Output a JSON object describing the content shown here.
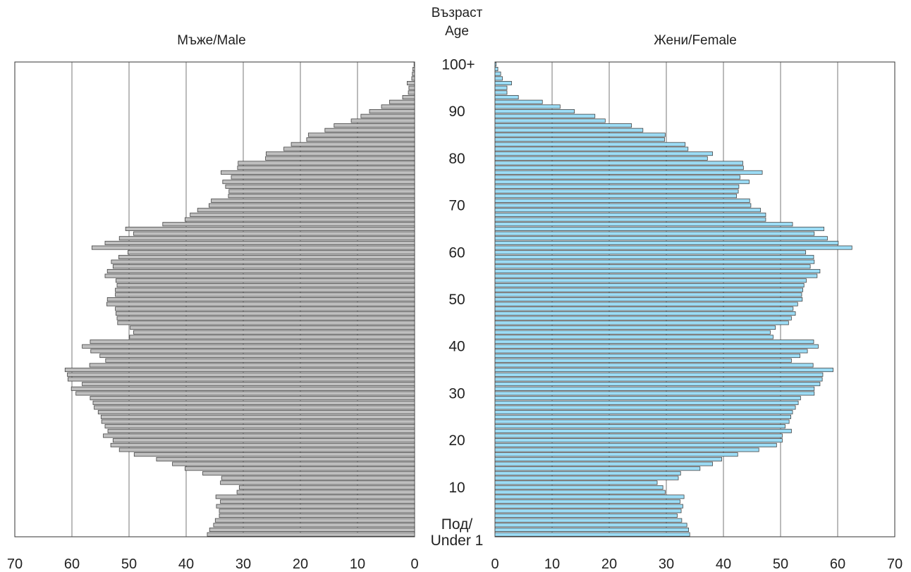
{
  "chart_data": {
    "type": "bar",
    "orientation": "horizontal",
    "title_center_top": "Възраст",
    "title_center_bottom": "Age",
    "male_title": "Мъже/Male",
    "female_title": "Жени/Female",
    "age_labels": [
      "100+",
      "90",
      "80",
      "70",
      "60",
      "50",
      "40",
      "30",
      "20",
      "10",
      "Под/",
      "Under 1"
    ],
    "xlim": [
      0,
      70
    ],
    "x_ticks": [
      "0",
      "10",
      "20",
      "30",
      "40",
      "50",
      "60",
      "70"
    ],
    "grid": true,
    "colors": {
      "male": "#bfbfbf",
      "female": "#9cdcf5"
    },
    "ages_order": "0 (Under 1) to 100+",
    "series": [
      {
        "name": "Мъже/Male",
        "values": [
          36.3,
          35.9,
          35.2,
          34.9,
          34.2,
          34.2,
          34.7,
          34.0,
          34.8,
          31.1,
          30.7,
          34.0,
          33.8,
          37.1,
          40.2,
          42.4,
          45.2,
          49.1,
          51.7,
          53.2,
          52.8,
          54.5,
          53.7,
          54.2,
          54.8,
          54.9,
          55.4,
          56.1,
          56.3,
          56.8,
          59.3,
          60.1,
          58.2,
          60.7,
          60.8,
          61.2,
          56.9,
          54.1,
          55.1,
          56.7,
          58.2,
          56.8,
          49.9,
          49.2,
          49.8,
          52.0,
          52.1,
          52.3,
          52.4,
          53.9,
          53.8,
          52.4,
          52.4,
          52.1,
          52.3,
          54.2,
          53.8,
          52.8,
          53.1,
          51.8,
          50.2,
          56.5,
          54.2,
          51.7,
          49.2,
          50.6,
          44.1,
          40.2,
          39.3,
          38.0,
          36.0,
          35.6,
          32.6,
          32.5,
          33.1,
          33.6,
          32.1,
          33.9,
          31.0,
          30.9,
          26.1,
          26.0,
          22.9,
          21.6,
          18.9,
          18.6,
          15.7,
          14.1,
          11.1,
          9.4,
          7.9,
          5.8,
          4.4,
          2.1,
          1.1,
          1.0,
          1.3,
          0.5,
          0.4,
          0.3,
          0.1
        ]
      },
      {
        "name": "Жени/Female",
        "values": [
          34.1,
          33.9,
          33.6,
          32.7,
          31.9,
          32.6,
          32.9,
          32.4,
          33.1,
          29.8,
          29.4,
          28.4,
          32.1,
          32.5,
          35.9,
          38.1,
          39.7,
          42.5,
          46.2,
          49.3,
          50.3,
          50.3,
          51.9,
          50.8,
          51.5,
          51.8,
          52.1,
          52.6,
          53.1,
          53.5,
          55.9,
          55.9,
          56.9,
          57.3,
          57.4,
          59.2,
          55.7,
          51.9,
          53.4,
          54.7,
          56.6,
          55.8,
          48.7,
          48.2,
          49.1,
          51.4,
          51.9,
          52.6,
          52.2,
          53.0,
          53.8,
          53.7,
          53.9,
          54.1,
          54.5,
          56.4,
          56.9,
          55.2,
          55.9,
          55.8,
          54.4,
          62.5,
          60.1,
          58.2,
          55.9,
          57.6,
          52.1,
          47.4,
          47.4,
          46.5,
          44.8,
          44.6,
          42.3,
          42.6,
          42.7,
          44.5,
          42.9,
          46.8,
          43.5,
          43.4,
          37.2,
          38.1,
          33.8,
          33.3,
          29.7,
          29.8,
          25.9,
          23.9,
          19.3,
          17.5,
          13.9,
          11.4,
          8.3,
          4.1,
          2.1,
          2.1,
          2.9,
          1.3,
          1.0,
          0.5,
          0.2
        ]
      }
    ]
  }
}
